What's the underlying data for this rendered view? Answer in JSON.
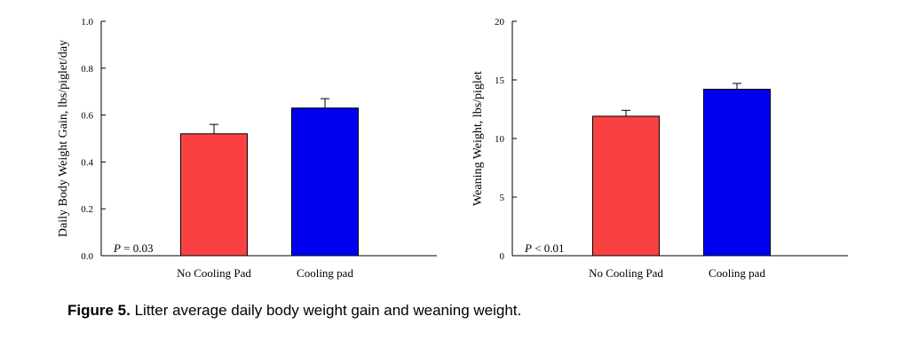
{
  "chart_data": [
    {
      "type": "bar",
      "categories": [
        "No Cooling Pad",
        "Cooling pad"
      ],
      "values": [
        0.52,
        0.63
      ],
      "errors": [
        0.04,
        0.04
      ],
      "colors": [
        "#f94141",
        "#0000ef"
      ],
      "ylabel": "Daily Body Weight Gain, lbs/piglet/day",
      "ylim": [
        0,
        1.0
      ],
      "yticks": [
        "0.0",
        "0.2",
        "0.4",
        "0.6",
        "0.8",
        "1.0"
      ],
      "annotation": {
        "italic": "P",
        "text": " = 0.03"
      },
      "grid": false
    },
    {
      "type": "bar",
      "categories": [
        "No Cooling Pad",
        "Cooling pad"
      ],
      "values": [
        11.9,
        14.2
      ],
      "errors": [
        0.5,
        0.5
      ],
      "colors": [
        "#f94141",
        "#0000ef"
      ],
      "ylabel": "Weaning Weight, lbs/piglet",
      "ylim": [
        0,
        20
      ],
      "yticks": [
        "0",
        "5",
        "10",
        "15",
        "20"
      ],
      "annotation": {
        "italic": "P",
        "text": " < 0.01"
      },
      "grid": false
    }
  ],
  "caption": {
    "bold": "Figure 5.",
    "text": " Litter average daily body weight gain and weaning weight."
  }
}
